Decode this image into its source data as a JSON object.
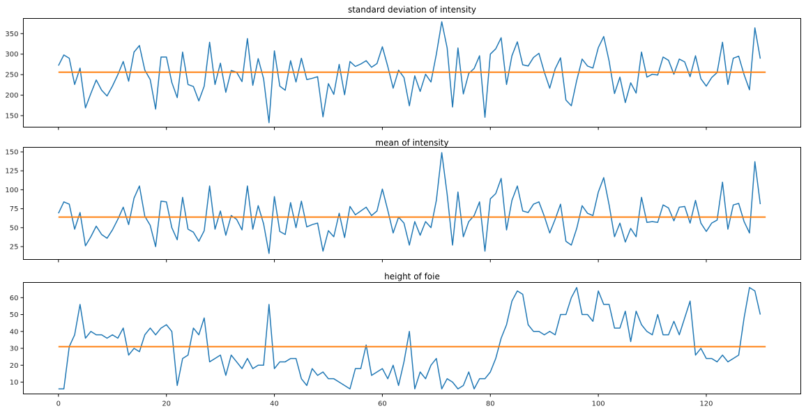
{
  "colors": {
    "series": "#1f77b4",
    "reference": "#ff7f0e"
  },
  "chart_data": [
    {
      "type": "line",
      "title": "standard deviation of intensity",
      "xlim": [
        -6.5,
        137.5
      ],
      "ylim": [
        122,
        387
      ],
      "xticks": [
        0,
        20,
        40,
        60,
        80,
        100,
        120
      ],
      "show_xtick_labels": false,
      "yticks": [
        150,
        200,
        250,
        300,
        350
      ],
      "series": [
        {
          "role": "data",
          "values": [
            272,
            298,
            290,
            226,
            266,
            169,
            204,
            237,
            212,
            198,
            222,
            250,
            282,
            234,
            305,
            321,
            261,
            238,
            166,
            293,
            293,
            231,
            194,
            305,
            226,
            221,
            186,
            222,
            329,
            226,
            278,
            207,
            260,
            256,
            233,
            338,
            224,
            289,
            240,
            133,
            308,
            222,
            212,
            284,
            232,
            290,
            238,
            241,
            245,
            147,
            228,
            202,
            275,
            201,
            282,
            270,
            276,
            284,
            268,
            277,
            318,
            270,
            217,
            261,
            243,
            174,
            247,
            209,
            251,
            232,
            300,
            379,
            315,
            171,
            315,
            203,
            253,
            265,
            296,
            146,
            300,
            313,
            340,
            226,
            296,
            330,
            274,
            271,
            292,
            302,
            256,
            217,
            264,
            291,
            188,
            174,
            236,
            288,
            271,
            266,
            316,
            343,
            283,
            204,
            244,
            182,
            230,
            205,
            305,
            244,
            251,
            249,
            293,
            285,
            251,
            288,
            281,
            245,
            296,
            240,
            222,
            243,
            255,
            329,
            226,
            290,
            295,
            250,
            213,
            364,
            289
          ]
        },
        {
          "role": "reference",
          "values": [
            256,
            256
          ],
          "x": [
            0,
            131
          ]
        }
      ]
    },
    {
      "type": "line",
      "title": "mean of intensity",
      "xlim": [
        -6.5,
        137.5
      ],
      "ylim": [
        8,
        156
      ],
      "xticks": [
        0,
        20,
        40,
        60,
        80,
        100,
        120
      ],
      "show_xtick_labels": false,
      "yticks": [
        25,
        50,
        75,
        100,
        125,
        150
      ],
      "series": [
        {
          "role": "data",
          "values": [
            69,
            84,
            81,
            48,
            70,
            26,
            38,
            52,
            41,
            36,
            47,
            61,
            77,
            54,
            89,
            105,
            65,
            53,
            25,
            85,
            84,
            50,
            34,
            90,
            48,
            44,
            32,
            46,
            105,
            48,
            72,
            40,
            66,
            61,
            47,
            105,
            48,
            79,
            55,
            16,
            91,
            45,
            41,
            83,
            50,
            85,
            51,
            54,
            56,
            19,
            46,
            38,
            69,
            37,
            78,
            67,
            72,
            77,
            66,
            72,
            101,
            73,
            43,
            64,
            56,
            27,
            58,
            40,
            58,
            50,
            86,
            149,
            94,
            27,
            97,
            38,
            58,
            66,
            84,
            19,
            88,
            95,
            115,
            47,
            86,
            105,
            72,
            70,
            81,
            84,
            65,
            43,
            61,
            81,
            32,
            27,
            49,
            79,
            69,
            66,
            97,
            116,
            80,
            38,
            56,
            31,
            49,
            38,
            90,
            57,
            58,
            57,
            80,
            76,
            59,
            77,
            78,
            56,
            86,
            56,
            45,
            56,
            60,
            110,
            48,
            80,
            82,
            58,
            43,
            137,
            81
          ]
        },
        {
          "role": "reference",
          "values": [
            64,
            64
          ],
          "x": [
            0,
            131
          ]
        }
      ]
    },
    {
      "type": "line",
      "title": "height of foie",
      "xlim": [
        -6.5,
        137.5
      ],
      "ylim": [
        3,
        69
      ],
      "xticks": [
        0,
        20,
        40,
        60,
        80,
        100,
        120
      ],
      "show_xtick_labels": true,
      "yticks": [
        10,
        20,
        30,
        40,
        50,
        60
      ],
      "series": [
        {
          "role": "data",
          "values": [
            6,
            6,
            31,
            38,
            56,
            36,
            40,
            38,
            38,
            36,
            38,
            36,
            42,
            26,
            30,
            28,
            38,
            42,
            38,
            42,
            44,
            40,
            8,
            24,
            26,
            42,
            38,
            48,
            22,
            24,
            26,
            14,
            26,
            22,
            18,
            24,
            18,
            20,
            20,
            56,
            18,
            22,
            22,
            24,
            24,
            12,
            8,
            18,
            14,
            16,
            12,
            12,
            10,
            8,
            6,
            18,
            18,
            32,
            14,
            16,
            18,
            12,
            20,
            8,
            22,
            40,
            6,
            16,
            12,
            20,
            24,
            6,
            12,
            10,
            6,
            8,
            16,
            6,
            12,
            12,
            16,
            24,
            36,
            44,
            58,
            64,
            62,
            44,
            40,
            40,
            38,
            40,
            38,
            50,
            50,
            60,
            66,
            50,
            50,
            46,
            64,
            56,
            56,
            42,
            42,
            52,
            34,
            52,
            44,
            40,
            38,
            50,
            38,
            38,
            46,
            38,
            48,
            58,
            26,
            30,
            24,
            24,
            22,
            26,
            22,
            24,
            26,
            48,
            66,
            64,
            50
          ]
        },
        {
          "role": "reference",
          "values": [
            31,
            31
          ],
          "x": [
            0,
            131
          ]
        }
      ]
    }
  ]
}
